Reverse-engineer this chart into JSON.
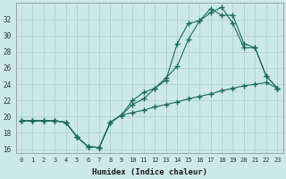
{
  "xlabel": "Humidex (Indice chaleur)",
  "x_values": [
    0,
    1,
    2,
    3,
    4,
    5,
    6,
    7,
    8,
    9,
    10,
    11,
    12,
    13,
    14,
    15,
    16,
    17,
    18,
    19,
    20,
    21,
    22,
    23
  ],
  "line1": [
    19.5,
    19.5,
    19.5,
    19.5,
    19.3,
    17.5,
    16.3,
    16.2,
    19.3,
    20.2,
    20.5,
    20.8,
    21.2,
    21.5,
    21.8,
    22.2,
    22.5,
    22.8,
    23.2,
    23.5,
    23.8,
    24.0,
    24.2,
    23.5
  ],
  "line2": [
    19.5,
    19.5,
    19.5,
    19.5,
    19.3,
    17.5,
    16.3,
    16.2,
    19.3,
    20.2,
    22.0,
    23.0,
    23.5,
    24.5,
    29.0,
    31.5,
    31.8,
    33.3,
    32.5,
    32.5,
    29.0,
    28.5,
    25.0,
    23.5
  ],
  "line3": [
    19.5,
    19.5,
    19.5,
    19.5,
    19.3,
    17.5,
    16.3,
    16.2,
    19.3,
    20.2,
    21.5,
    22.2,
    23.5,
    24.8,
    26.2,
    29.5,
    31.8,
    32.8,
    33.5,
    31.5,
    28.5,
    28.5,
    25.0,
    23.5
  ],
  "line_color": "#1a6b5a",
  "bg_color": "#cce8e8",
  "grid_color": "#aacccc",
  "ylim": [
    15.5,
    34.0
  ],
  "xlim": [
    -0.5,
    23.5
  ],
  "yticks": [
    16,
    18,
    20,
    22,
    24,
    26,
    28,
    30,
    32
  ],
  "xticks": [
    0,
    1,
    2,
    3,
    4,
    5,
    6,
    7,
    8,
    9,
    10,
    11,
    12,
    13,
    14,
    15,
    16,
    17,
    18,
    19,
    20,
    21,
    22,
    23
  ]
}
